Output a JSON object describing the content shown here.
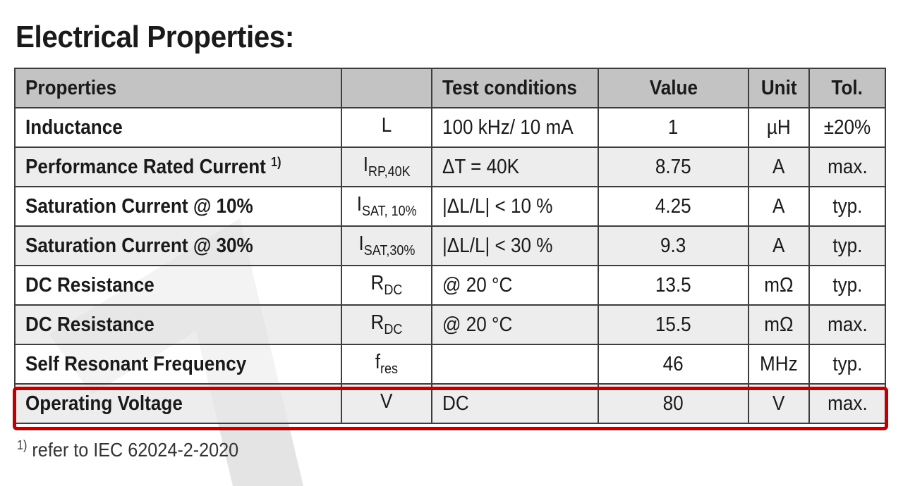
{
  "title": "Electrical Properties:",
  "table": {
    "headers": {
      "properties": "Properties",
      "symbol": "",
      "test_conditions": "Test conditions",
      "value": "Value",
      "unit": "Unit",
      "tol": "Tol."
    },
    "rows": [
      {
        "property": "Inductance",
        "property_footnote": "",
        "sym": "L",
        "sym_sub": "",
        "cond": "100 kHz/ 10 mA",
        "value": "1",
        "unit": "µH",
        "tol": "±20%"
      },
      {
        "property": "Performance Rated Current",
        "property_footnote": "1)",
        "sym": "I",
        "sym_sub": "RP,40K",
        "cond": "ΔT = 40K",
        "value": "8.75",
        "unit": "A",
        "tol": "max."
      },
      {
        "property": "Saturation Current @ 10%",
        "property_footnote": "",
        "sym": "I",
        "sym_sub": "SAT, 10%",
        "cond": "|ΔL/L| < 10 %",
        "value": "4.25",
        "unit": "A",
        "tol": "typ."
      },
      {
        "property": "Saturation Current @ 30%",
        "property_footnote": "",
        "sym": "I",
        "sym_sub": "SAT,30%",
        "cond": "|ΔL/L| < 30 %",
        "value": "9.3",
        "unit": "A",
        "tol": "typ."
      },
      {
        "property": "DC Resistance",
        "property_footnote": "",
        "sym": "R",
        "sym_sub": "DC",
        "cond": "@ 20 °C",
        "value": "13.5",
        "unit": "mΩ",
        "tol": "typ."
      },
      {
        "property": "DC Resistance",
        "property_footnote": "",
        "sym": "R",
        "sym_sub": "DC",
        "cond": "@ 20 °C",
        "value": "15.5",
        "unit": "mΩ",
        "tol": "max."
      },
      {
        "property": "Self Resonant Frequency",
        "property_footnote": "",
        "sym": "f",
        "sym_sub": "res",
        "cond": "",
        "value": "46",
        "unit": "MHz",
        "tol": "typ."
      },
      {
        "property": "Operating Voltage",
        "property_footnote": "",
        "sym": "V",
        "sym_sub": "",
        "cond": "DC",
        "value": "80",
        "unit": "V",
        "tol": "max."
      }
    ]
  },
  "footnote": {
    "marker": "1)",
    "text": " refer to IEC 62024-2-2020"
  },
  "colors": {
    "header_bg": "#c3c3c3",
    "highlight": "#c00000",
    "watermark": "#e2e2e2"
  }
}
